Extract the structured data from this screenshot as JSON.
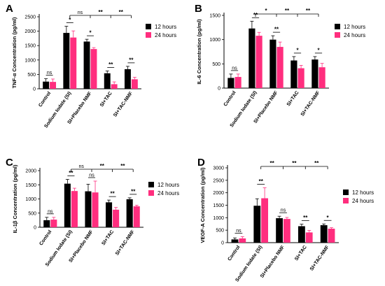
{
  "colors": {
    "s12": "#000000",
    "s24": "#ff2e7e"
  },
  "chart_data": [
    {
      "letter": "A",
      "type": "bar",
      "ylabel": "TNF-α Concentration (pg/ml)",
      "ylim": [
        0,
        2500
      ],
      "yticks": [
        0,
        500,
        1000,
        1500,
        2000,
        2500
      ],
      "categories": [
        "Control",
        "Sodium Iodate (SI)",
        "SI+Placebo NMF",
        "SI+TAC",
        "SI+TAC-NMF"
      ],
      "series": [
        {
          "name": "12 hours",
          "values": [
            250,
            1940,
            1640,
            540,
            680
          ],
          "errors": [
            100,
            230,
            80,
            80,
            100
          ]
        },
        {
          "name": "24 hours",
          "values": [
            240,
            1780,
            1380,
            160,
            330
          ],
          "errors": [
            100,
            230,
            50,
            80,
            70
          ]
        }
      ],
      "pair_sig": [
        "ns",
        "*",
        "*",
        "**",
        "**"
      ],
      "top_sig": [
        "ns",
        "**",
        "**"
      ],
      "legend_position": "right"
    },
    {
      "letter": "B",
      "type": "bar",
      "ylabel": "IL-6 Concentration (pg/ml)",
      "ylim": [
        0,
        1500
      ],
      "yticks": [
        0,
        500,
        1000,
        1500
      ],
      "categories": [
        "Control",
        "Sodium Iodate (SI)",
        "SI+Placebo NMF",
        "SI+TAC",
        "SI+TAC-NMF"
      ],
      "series": [
        {
          "name": "12 hours",
          "values": [
            210,
            1230,
            1000,
            570,
            590
          ],
          "errors": [
            80,
            150,
            80,
            80,
            60
          ]
        },
        {
          "name": "24 hours",
          "values": [
            230,
            1080,
            850,
            410,
            430
          ],
          "errors": [
            60,
            70,
            100,
            60,
            80
          ]
        }
      ],
      "pair_sig": [
        "ns",
        "**",
        "**",
        "*",
        "*"
      ],
      "top_sig": [
        "*",
        "**",
        "**"
      ],
      "legend_position": "right"
    },
    {
      "letter": "C",
      "type": "bar",
      "ylabel": "IL-1β Concentration (pg/ml)",
      "ylim": [
        0,
        2000
      ],
      "yticks": [
        0,
        500,
        1000,
        1500,
        2000
      ],
      "categories": [
        "Control",
        "Sodium Iodate (SI)",
        "SI+Placebo NMF",
        "SI+TAC",
        "SI+TAC-NMF"
      ],
      "series": [
        {
          "name": "12 hours",
          "values": [
            250,
            1540,
            1270,
            880,
            990
          ],
          "errors": [
            100,
            150,
            250,
            80,
            50
          ]
        },
        {
          "name": "24 hours",
          "values": [
            270,
            1280,
            1230,
            620,
            740
          ],
          "errors": [
            80,
            100,
            400,
            80,
            40
          ]
        }
      ],
      "pair_sig": [
        "ns",
        "**",
        "ns",
        "**",
        "**"
      ],
      "top_sig": [
        "ns",
        "**",
        "**"
      ],
      "legend_position": "right"
    },
    {
      "letter": "D",
      "type": "bar",
      "ylabel": "VEGF-A Concentration (pg/ml)",
      "ylim": [
        0,
        3000
      ],
      "yticks": [
        0,
        500,
        1000,
        1500,
        2000,
        2500,
        3000
      ],
      "categories": [
        "Control",
        "Sodium Iodate (SI)",
        "SI+Placebo NMF",
        "SI+TAC",
        "SI+TAC-NMF"
      ],
      "series": [
        {
          "name": "12 hours",
          "values": [
            130,
            1480,
            980,
            660,
            700
          ],
          "errors": [
            60,
            280,
            80,
            80,
            50
          ]
        },
        {
          "name": "24 hours",
          "values": [
            170,
            1780,
            950,
            410,
            560
          ],
          "errors": [
            70,
            420,
            60,
            80,
            40
          ]
        }
      ],
      "pair_sig": [
        "ns",
        "**",
        "ns",
        "**",
        "*"
      ],
      "top_sig": [
        "**",
        "**",
        "**"
      ],
      "legend_position": "right"
    }
  ]
}
